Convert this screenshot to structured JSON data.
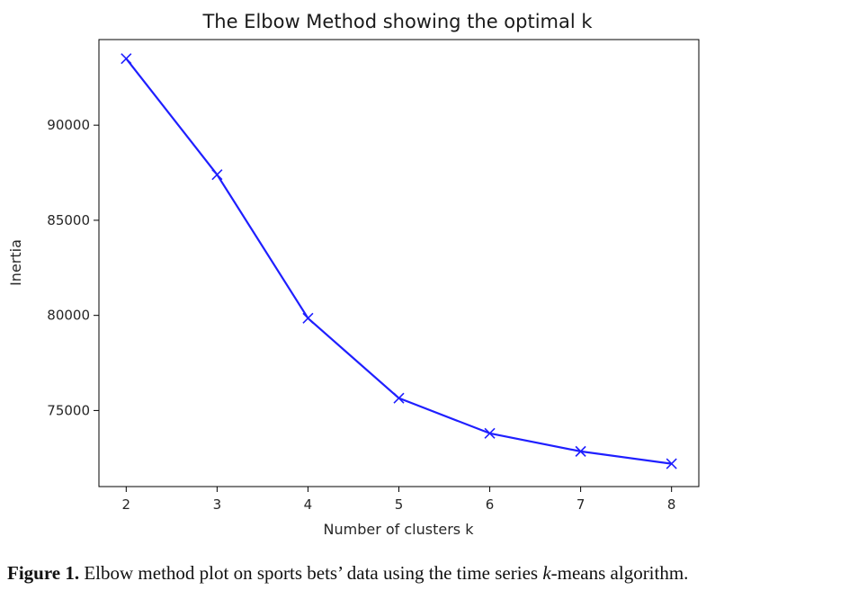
{
  "chart_data": {
    "type": "line",
    "title": "The Elbow Method showing the optimal k",
    "xlabel": "Number of clusters k",
    "ylabel": "Inertia",
    "x": [
      2,
      3,
      4,
      5,
      6,
      7,
      8
    ],
    "series": [
      {
        "values": [
          93500,
          87400,
          79850,
          75650,
          73800,
          72850,
          72200
        ],
        "color": "#1f1fff",
        "marker": "x"
      }
    ],
    "xlim": [
      1.7,
      8.3
    ],
    "ylim": [
      71000,
      94500
    ],
    "xticks": [
      "2",
      "3",
      "4",
      "5",
      "6",
      "7",
      "8"
    ],
    "yticks": [
      "75000",
      "80000",
      "85000",
      "90000"
    ],
    "grid": false
  },
  "caption": {
    "label": "Figure 1.",
    "text_before": " Elbow method plot on sports bets’ data using the time series ",
    "italic": "k",
    "text_after": "-means algorithm."
  }
}
